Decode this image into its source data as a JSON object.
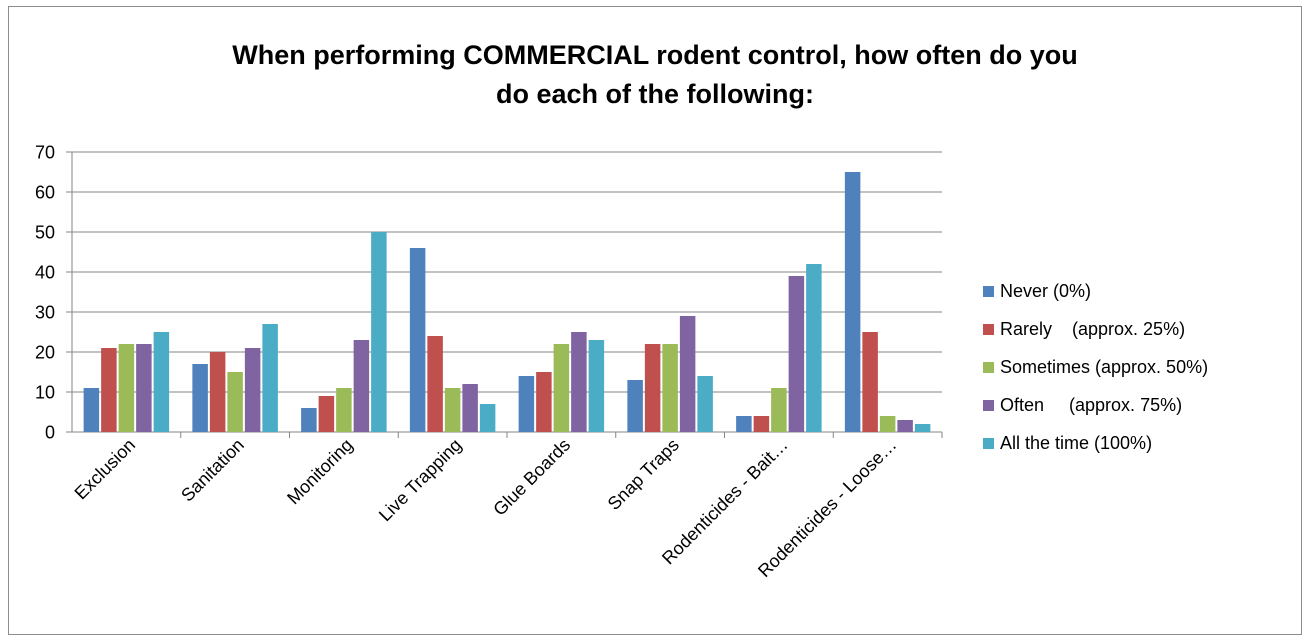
{
  "chart_data": {
    "type": "bar",
    "title_lines": [
      "When performing COMMERCIAL rodent control, how often do you",
      "do each of the following:"
    ],
    "xlabel": "",
    "ylabel": "",
    "ylim": [
      0,
      70
    ],
    "yticks": [
      0,
      10,
      20,
      30,
      40,
      50,
      60,
      70
    ],
    "grid": true,
    "legend_position": "right",
    "categories": [
      "Exclusion",
      "Sanitation",
      "Monitoring",
      "Live Trapping",
      "Glue Boards",
      "Snap Traps",
      "Rodenticides - Bait…",
      "Rodenticides - Loose…"
    ],
    "series": [
      {
        "name": "Never (0%)",
        "color": "#4f81bd",
        "values": [
          11,
          17,
          6,
          46,
          14,
          13,
          4,
          65
        ]
      },
      {
        "name": "Rarely    (approx. 25%)",
        "color": "#c0504d",
        "values": [
          21,
          20,
          9,
          24,
          15,
          22,
          4,
          25
        ]
      },
      {
        "name": "Sometimes (approx. 50%)",
        "color": "#9bbb59",
        "values": [
          22,
          15,
          11,
          11,
          22,
          22,
          11,
          4
        ]
      },
      {
        "name": "Often     (approx. 75%)",
        "color": "#8064a2",
        "values": [
          22,
          21,
          23,
          12,
          25,
          29,
          39,
          3
        ]
      },
      {
        "name": "All the time (100%)",
        "color": "#4bacc6",
        "values": [
          25,
          27,
          50,
          7,
          23,
          14,
          42,
          2
        ]
      }
    ]
  }
}
